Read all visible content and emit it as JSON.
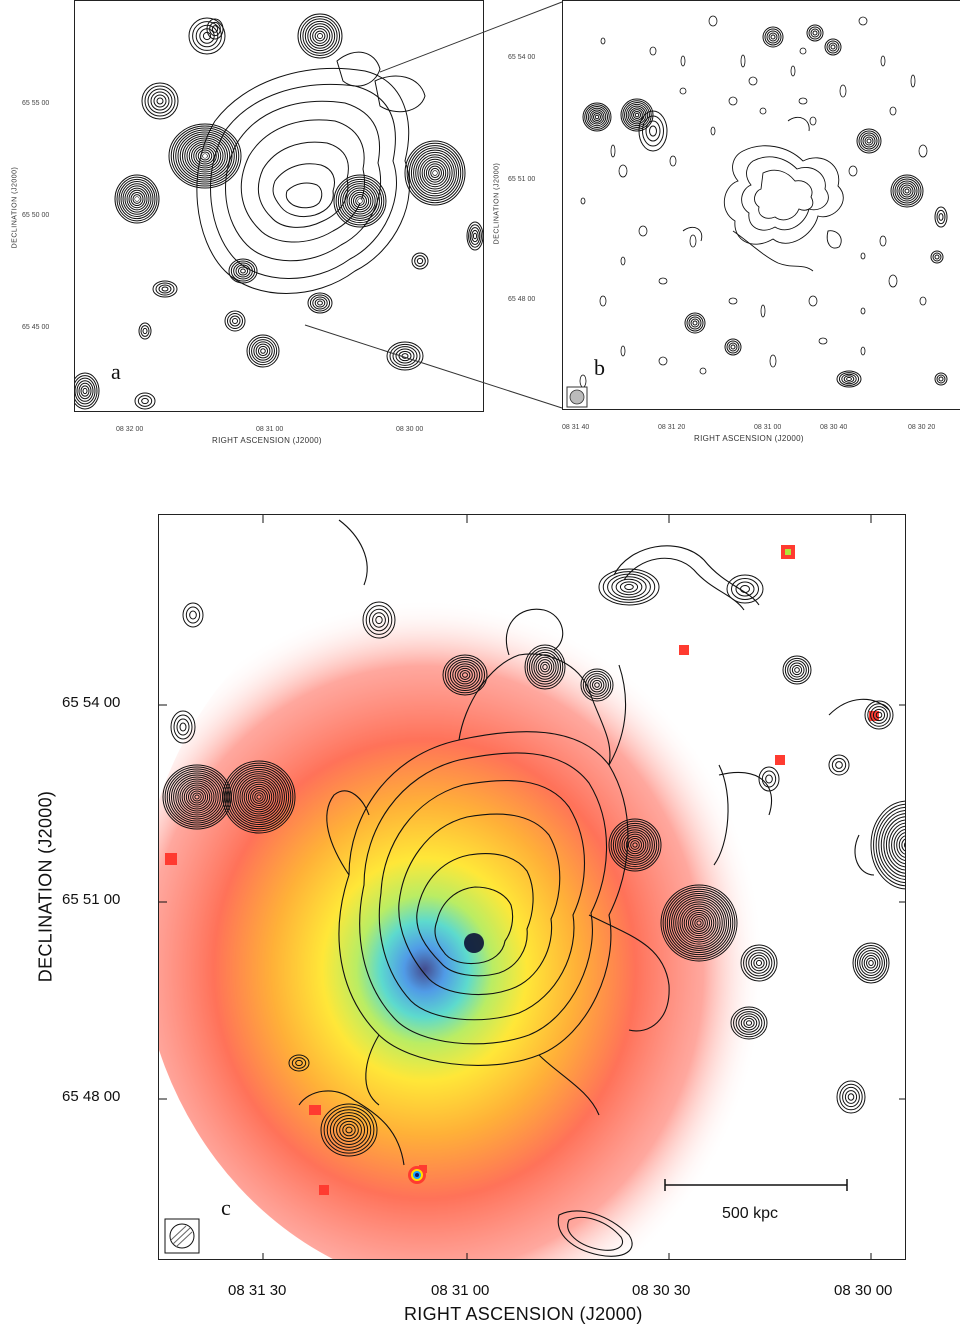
{
  "panels": {
    "a": {
      "letter": "a",
      "xlabel": "RIGHT ASCENSION  (J2000)",
      "ylabel": "DECLINATION (J2000)",
      "xticks": [
        "08 32 00",
        "08 31 00",
        "08 30 00"
      ],
      "yticks": [
        "65 55 00",
        "65 50 00",
        "65 45 00"
      ]
    },
    "b": {
      "letter": "b",
      "xlabel": "RIGHT ASCENSION  (J2000)",
      "ylabel": "DECLINATION (J2000)",
      "xticks": [
        "08 31 40",
        "08 31 20",
        "08 31 00",
        "08 30 40",
        "08 30 20"
      ],
      "yticks": [
        "65 54 00",
        "65 51 00",
        "65 48 00"
      ]
    },
    "c": {
      "letter": "c",
      "xlabel": "RIGHT ASCENSION  (J2000)",
      "ylabel": "DECLINATION  (J2000)",
      "xticks": [
        "08 31 30",
        "08 31 00",
        "08 30 30",
        "08 30 00"
      ],
      "yticks": [
        "65 54 00",
        "65 51 00",
        "65 48 00"
      ],
      "scale_bar": "500 kpc"
    }
  },
  "colors": {
    "contour": "#111111",
    "xray_faint": "#ff3b30",
    "xray_mid": "#ff9a00",
    "xray_bright": "#ffe600",
    "xray_core": "#1aa0ff",
    "xray_peak": "#102080"
  }
}
